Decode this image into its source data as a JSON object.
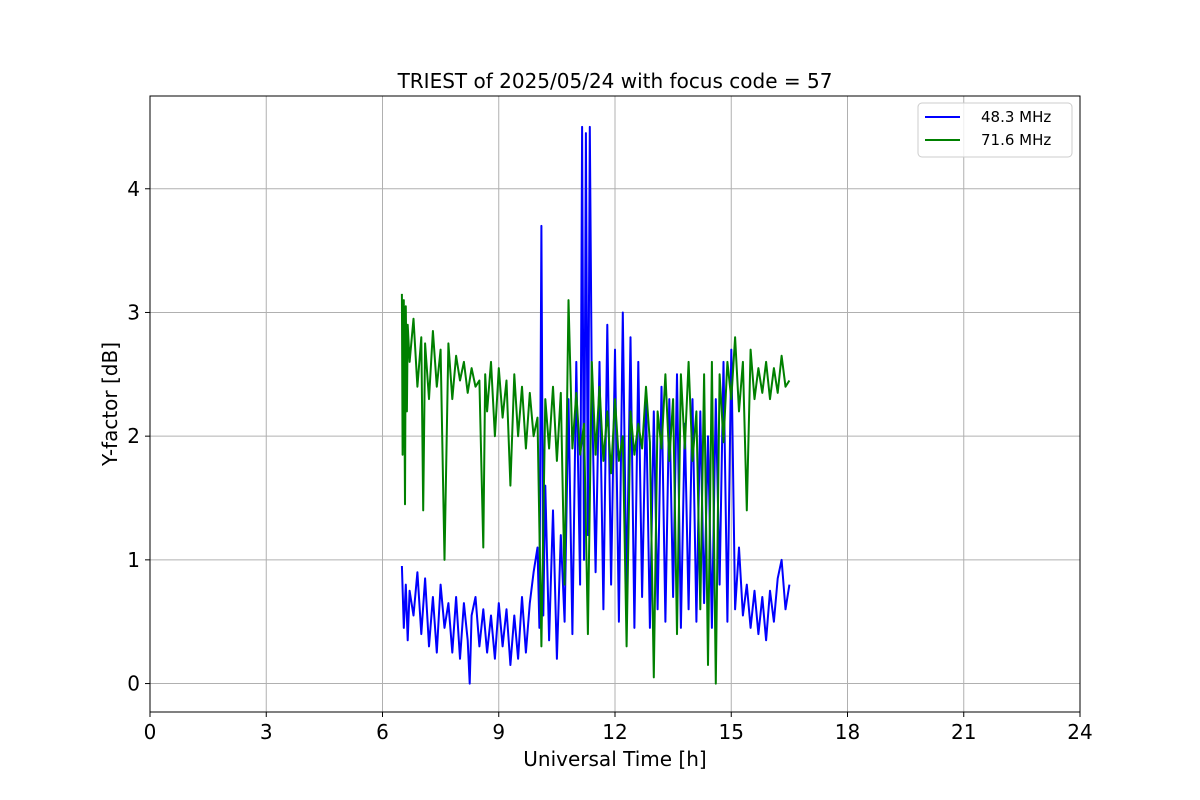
{
  "chart_data": {
    "type": "line",
    "title": "TRIEST of 2025/05/24 with focus code = 57",
    "xlabel": "Universal Time [h]",
    "ylabel": "Y-factor [dB]",
    "xlim": [
      0,
      24
    ],
    "ylim": [
      -0.23,
      4.75
    ],
    "xticks": [
      0,
      3,
      6,
      9,
      12,
      15,
      18,
      21,
      24
    ],
    "yticks": [
      0,
      1,
      2,
      3,
      4
    ],
    "grid": true,
    "legend_position": "top-right",
    "series": [
      {
        "name": "48.3 MHz",
        "color": "#0000ff",
        "x": [
          6.5,
          6.55,
          6.6,
          6.65,
          6.7,
          6.8,
          6.9,
          7.0,
          7.1,
          7.2,
          7.3,
          7.4,
          7.5,
          7.6,
          7.7,
          7.8,
          7.9,
          8.0,
          8.1,
          8.2,
          8.25,
          8.3,
          8.4,
          8.5,
          8.6,
          8.7,
          8.8,
          8.9,
          9.0,
          9.1,
          9.2,
          9.3,
          9.4,
          9.5,
          9.6,
          9.7,
          9.8,
          9.9,
          10.0,
          10.05,
          10.1,
          10.15,
          10.2,
          10.3,
          10.4,
          10.5,
          10.6,
          10.7,
          10.8,
          10.9,
          11.0,
          11.1,
          11.15,
          11.2,
          11.25,
          11.3,
          11.35,
          11.4,
          11.5,
          11.6,
          11.7,
          11.8,
          11.9,
          12.0,
          12.1,
          12.2,
          12.3,
          12.4,
          12.5,
          12.6,
          12.7,
          12.8,
          12.9,
          13.0,
          13.1,
          13.2,
          13.3,
          13.4,
          13.5,
          13.6,
          13.7,
          13.8,
          13.9,
          14.0,
          14.1,
          14.2,
          14.3,
          14.4,
          14.5,
          14.6,
          14.7,
          14.8,
          14.9,
          15.0,
          15.1,
          15.2,
          15.3,
          15.4,
          15.5,
          15.6,
          15.7,
          15.8,
          15.9,
          16.0,
          16.1,
          16.2,
          16.3,
          16.4,
          16.5
        ],
        "y": [
          0.95,
          0.45,
          0.8,
          0.35,
          0.75,
          0.55,
          0.9,
          0.4,
          0.85,
          0.3,
          0.7,
          0.25,
          0.8,
          0.45,
          0.65,
          0.25,
          0.7,
          0.2,
          0.65,
          0.35,
          0.0,
          0.55,
          0.7,
          0.3,
          0.6,
          0.25,
          0.55,
          0.2,
          0.65,
          0.3,
          0.6,
          0.15,
          0.55,
          0.2,
          0.7,
          0.25,
          0.65,
          0.9,
          1.1,
          0.45,
          3.7,
          0.55,
          1.6,
          0.35,
          1.4,
          0.2,
          1.2,
          0.5,
          2.3,
          0.4,
          2.6,
          0.8,
          4.5,
          1.0,
          4.45,
          1.2,
          4.5,
          2.4,
          0.9,
          2.6,
          0.6,
          2.9,
          0.8,
          2.7,
          0.5,
          3.0,
          0.7,
          2.8,
          0.45,
          2.6,
          0.7,
          2.3,
          0.45,
          2.2,
          0.6,
          2.4,
          0.5,
          2.3,
          0.7,
          2.5,
          0.45,
          2.1,
          0.6,
          2.3,
          0.5,
          2.2,
          0.65,
          2.0,
          0.45,
          2.3,
          0.8,
          2.6,
          0.5,
          2.7,
          0.6,
          1.1,
          0.55,
          0.8,
          0.45,
          0.75,
          0.4,
          0.7,
          0.35,
          0.75,
          0.5,
          0.85,
          1.0,
          0.6,
          0.8
        ]
      },
      {
        "name": "71.6 MHz",
        "color": "#008000",
        "x": [
          6.5,
          6.52,
          6.55,
          6.58,
          6.6,
          6.63,
          6.65,
          6.7,
          6.8,
          6.9,
          7.0,
          7.05,
          7.1,
          7.2,
          7.3,
          7.4,
          7.5,
          7.6,
          7.7,
          7.8,
          7.9,
          8.0,
          8.1,
          8.2,
          8.3,
          8.4,
          8.5,
          8.6,
          8.65,
          8.7,
          8.8,
          8.9,
          9.0,
          9.1,
          9.2,
          9.3,
          9.4,
          9.5,
          9.6,
          9.7,
          9.8,
          9.9,
          10.0,
          10.1,
          10.2,
          10.3,
          10.4,
          10.5,
          10.6,
          10.7,
          10.8,
          10.9,
          11.0,
          11.1,
          11.2,
          11.3,
          11.4,
          11.5,
          11.6,
          11.7,
          11.8,
          11.9,
          12.0,
          12.1,
          12.2,
          12.3,
          12.4,
          12.5,
          12.6,
          12.7,
          12.8,
          12.9,
          13.0,
          13.1,
          13.2,
          13.3,
          13.4,
          13.5,
          13.6,
          13.7,
          13.8,
          13.9,
          14.0,
          14.1,
          14.2,
          14.3,
          14.4,
          14.5,
          14.6,
          14.7,
          14.8,
          14.9,
          15.0,
          15.1,
          15.2,
          15.3,
          15.4,
          15.5,
          15.6,
          15.7,
          15.8,
          15.9,
          16.0,
          16.1,
          16.2,
          16.3,
          16.4,
          16.5
        ],
        "y": [
          3.15,
          1.85,
          3.1,
          1.45,
          3.05,
          2.2,
          2.9,
          2.6,
          2.95,
          2.4,
          2.8,
          1.4,
          2.75,
          2.3,
          2.85,
          2.4,
          2.7,
          1.0,
          2.75,
          2.3,
          2.65,
          2.45,
          2.6,
          2.35,
          2.55,
          2.4,
          2.45,
          1.1,
          2.5,
          2.2,
          2.6,
          2.0,
          2.55,
          2.15,
          2.45,
          1.6,
          2.5,
          2.0,
          2.4,
          1.9,
          2.35,
          2.0,
          2.15,
          0.3,
          2.3,
          1.9,
          2.4,
          1.8,
          2.35,
          0.8,
          3.1,
          1.9,
          2.35,
          1.85,
          2.1,
          0.4,
          2.6,
          1.85,
          2.4,
          1.8,
          2.2,
          1.7,
          2.3,
          1.8,
          2.0,
          0.3,
          2.2,
          1.85,
          2.1,
          1.9,
          2.4,
          1.95,
          0.05,
          2.2,
          1.9,
          2.5,
          1.8,
          2.3,
          0.4,
          2.5,
          1.9,
          2.6,
          1.8,
          2.2,
          0.6,
          2.5,
          0.15,
          2.6,
          0.0,
          2.5,
          1.95,
          2.6,
          2.3,
          2.8,
          2.2,
          2.6,
          1.4,
          2.7,
          2.3,
          2.55,
          2.35,
          2.6,
          2.3,
          2.55,
          2.35,
          2.65,
          2.4,
          2.45
        ]
      }
    ]
  }
}
